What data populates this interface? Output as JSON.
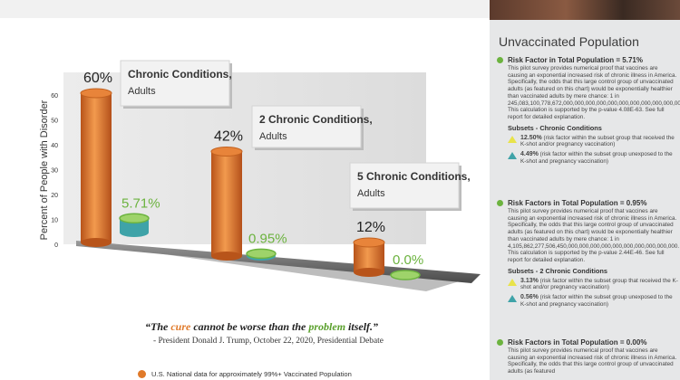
{
  "sidebar": {
    "title": "Unvaccinated Population",
    "blocks": [
      {
        "heading": "Risk Factor in Total Population = 5.71%",
        "body": "This pilot survey provides numerical proof that vaccines are causing an exponential increased risk of chronic illness in America. Specifically, the odds that this large control group of unvaccinated adults (as featured on this chart) would be exponentially healthier than vaccinated adults by mere chance: 1 in 245,083,100,778,672,000,000,000,000,000,000,000,000,000,000,000,000,000,000,000,000,000,000. This calculation is supported by the p-value 4.08E-63. See full report for detailed explanation.",
        "subsets_title": "Subsets - Chronic Conditions",
        "subsets": [
          {
            "value": "12.50%",
            "text": "(risk factor within the subset group that received the K-shot and/or pregnancy vaccination)",
            "color": "#e8e34a"
          },
          {
            "value": "4.49%",
            "text": "(risk factor within the subset group unexposed to the K-shot and pregnancy vaccination)",
            "color": "#3fa3a8"
          }
        ]
      },
      {
        "heading": "Risk Factors in Total Population = 0.95%",
        "body": "This pilot survey provides numerical proof that vaccines are causing an exponential increased risk of chronic illness in America. Specifically, the odds that this large control group of unvaccinated adults (as featured on this chart) would be exponentially healthier than vaccinated adults by mere chance: 1 in 4,105,862,277,506,450,000,000,000,000,000,000,000,000,000,000. This calculation is supported by the p-value 2.44E-46. See full report for detailed explanation.",
        "subsets_title": "Subsets - 2 Chronic Conditions",
        "subsets": [
          {
            "value": "3.13%",
            "text": "(risk factor within the subset group that received the K-shot and/or pregnancy vaccination)",
            "color": "#e8e34a"
          },
          {
            "value": "0.56%",
            "text": "(risk factor within the subset group unexposed to the K-shot and pregnancy vaccination)",
            "color": "#3fa3a8"
          }
        ]
      },
      {
        "heading": "Risk Factors in Total Population = 0.00%",
        "body": "This pilot survey provides numerical proof that vaccines are causing an exponential increased risk of chronic illness in America. Specifically, the odds that this large control group of unvaccinated adults (as featured"
      }
    ]
  },
  "quote": {
    "open": "“The ",
    "cure": "cure",
    "middle": " cannot be worse than the ",
    "problem": "problem",
    "close": " itself.”",
    "attribution": "- President Donald J. Trump, October 22, 2020, Presidential Debate"
  },
  "legend": {
    "label": "U.S. National data for approximately 99%+ Vaccinated Population",
    "color": "#e07a2a"
  },
  "chart_data": {
    "type": "bar",
    "ylabel": "Percent of People with Disorder",
    "ylim": [
      0,
      60
    ],
    "yticks": [
      0,
      10,
      20,
      30,
      40,
      50,
      60
    ],
    "categories": [
      {
        "name": "Chronic Conditions,",
        "sub": "Adults"
      },
      {
        "name": "2 Chronic Conditions,",
        "sub": "Adults"
      },
      {
        "name": "5 Chronic Conditions,",
        "sub": "Adults"
      }
    ],
    "series": [
      {
        "values": [
          60,
          42,
          12
        ],
        "labels": [
          "60%",
          "42%",
          "12%"
        ],
        "color": "#e07a2a"
      },
      {
        "values": [
          5.71,
          0.95,
          0.0
        ],
        "labels": [
          "5.71%",
          "0.95%",
          "0.0%"
        ],
        "color": "#6cb33f"
      }
    ],
    "subset_accent": {
      "color": "#3fa3a8"
    }
  }
}
